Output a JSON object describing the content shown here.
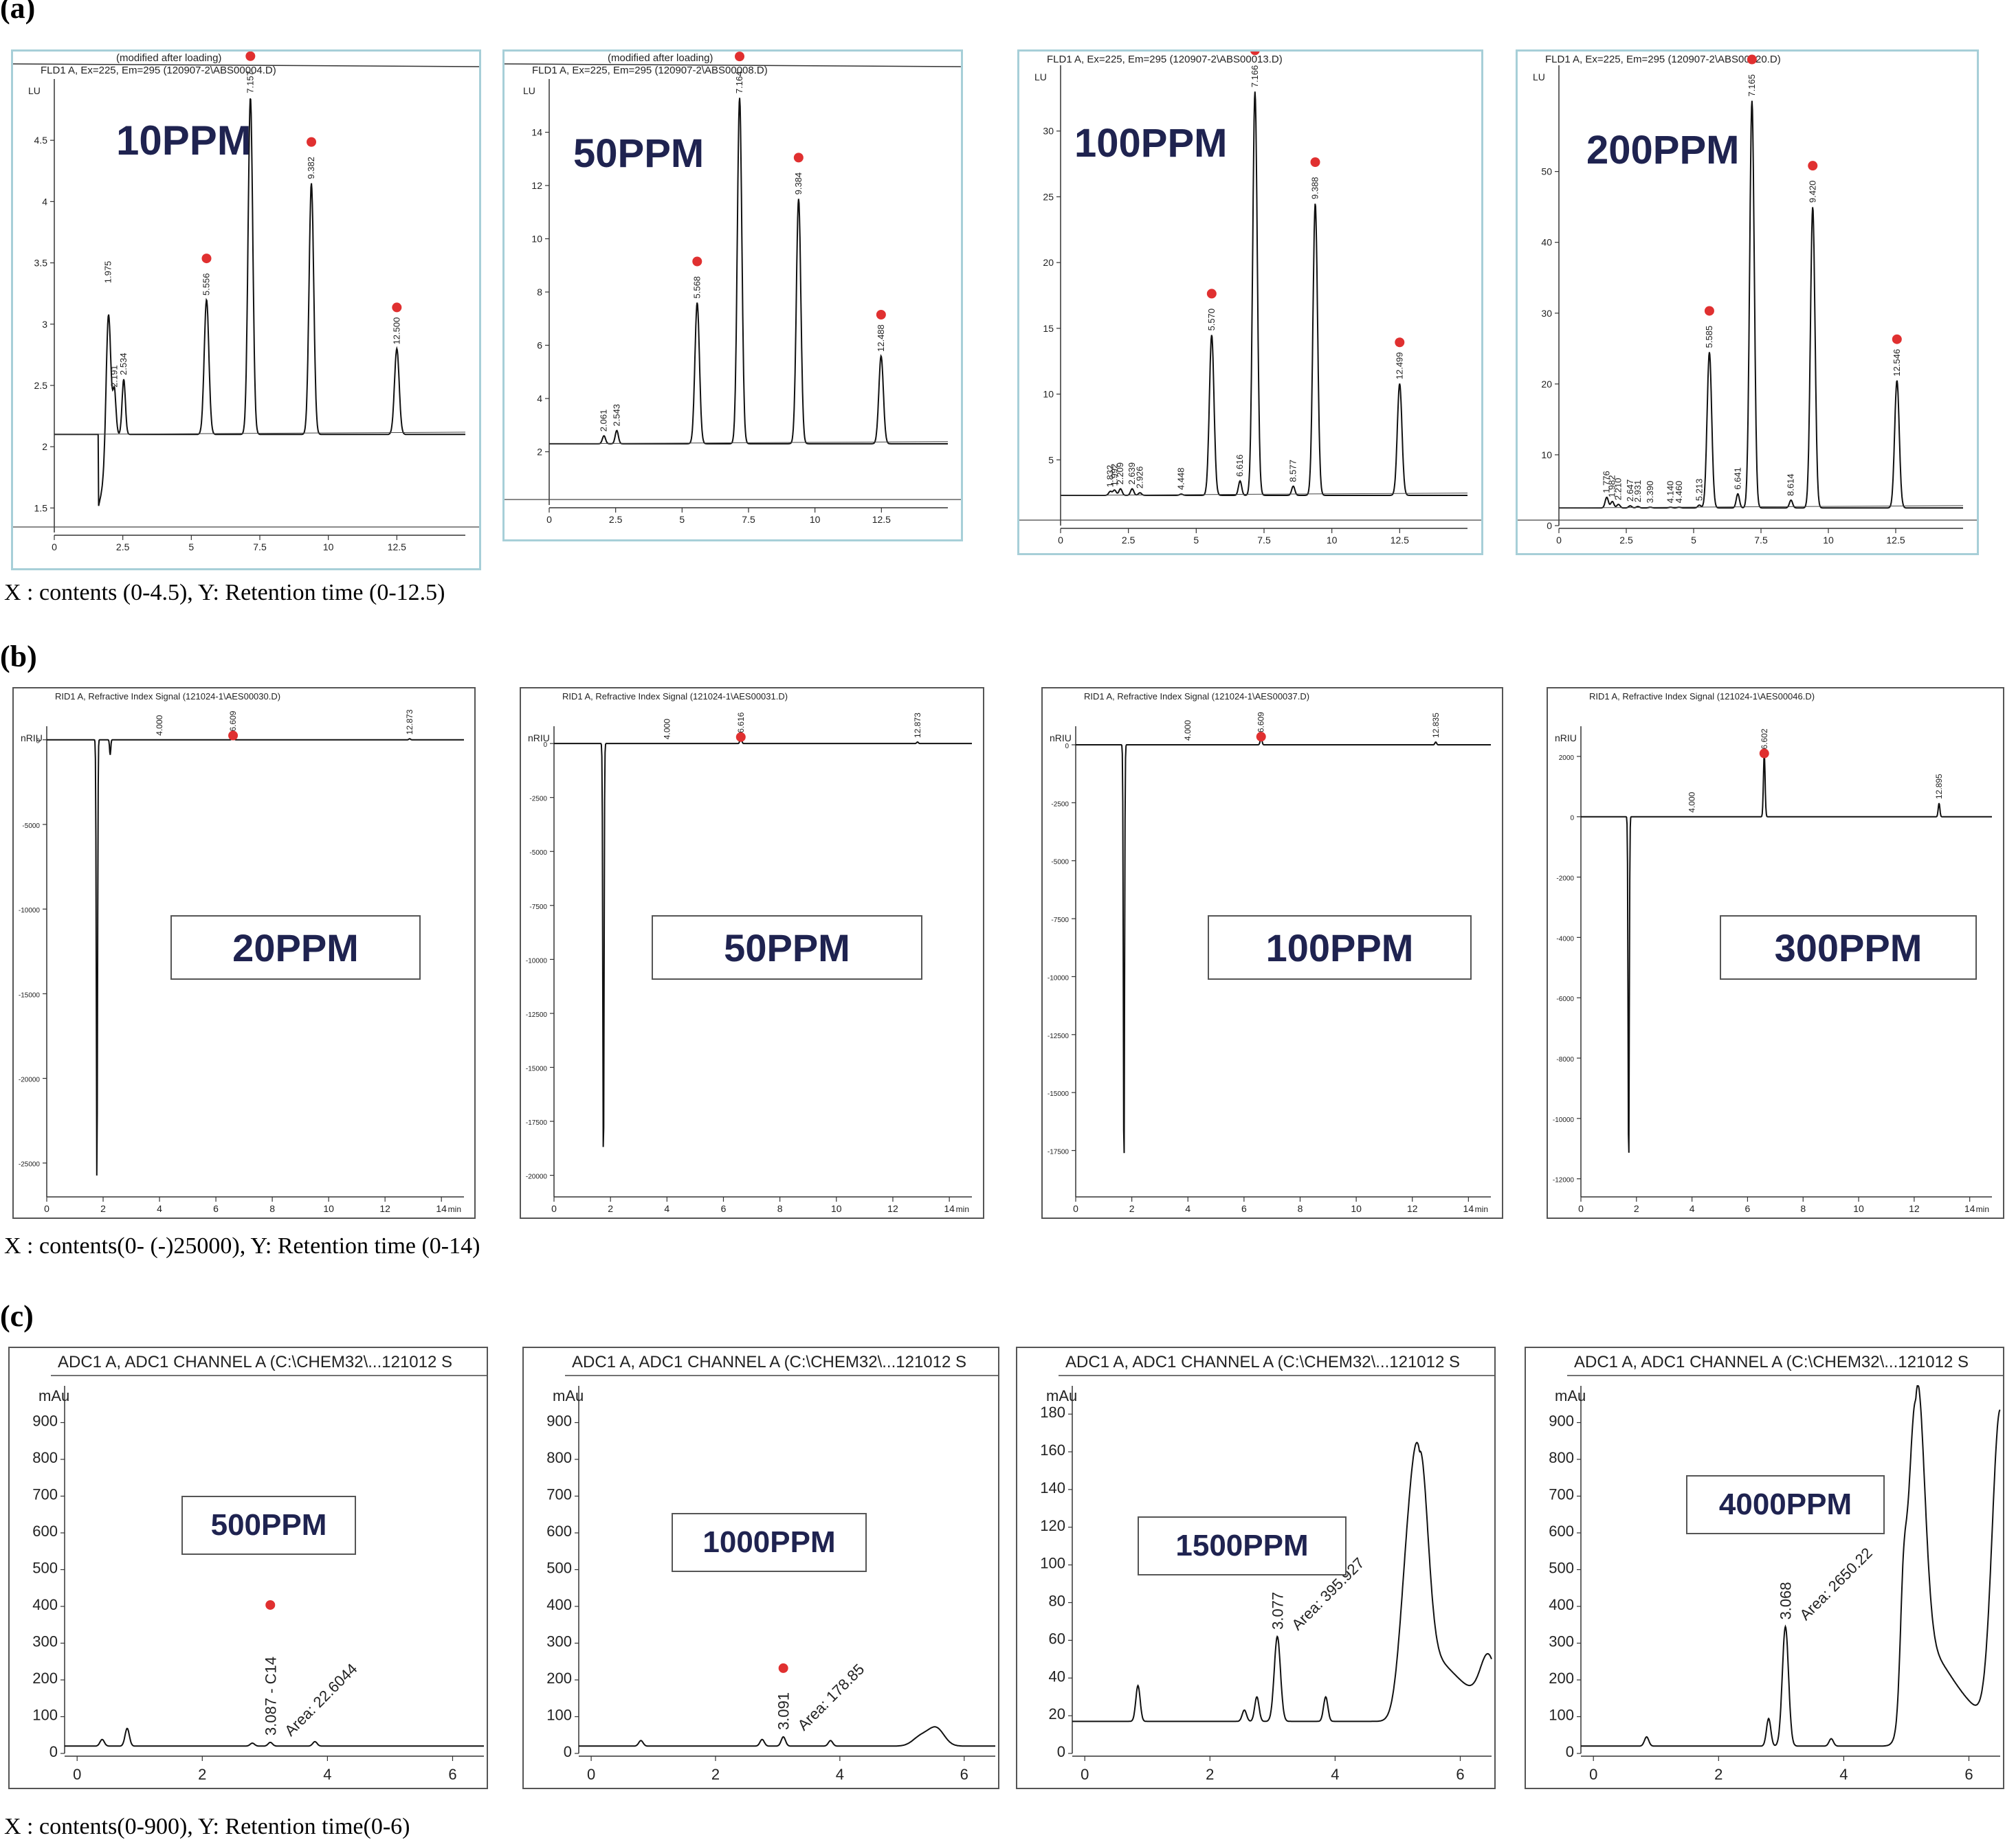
{
  "sections": [
    {
      "id": "a",
      "label": "(a)",
      "caption": "X : contents (0-4.5), Y: Retention time (0-12.5)",
      "charts": [
        {
          "concentration": "10PPM",
          "header_top": "(modified after loading)",
          "header": "FLD1 A, Ex=225, Em=295 (120907-2\\ABS00004.D)",
          "y_unit": "LU",
          "peaks": [
            "1.975",
            "2.191",
            "2.534",
            "5.556",
            "7.157",
            "9.382",
            "12.500"
          ]
        },
        {
          "concentration": "50PPM",
          "header_top": "(modified after loading)",
          "header": "FLD1 A, Ex=225, Em=295 (120907-2\\ABS00008.D)",
          "y_unit": "LU",
          "peaks": [
            "2.061",
            "2.543",
            "5.568",
            "7.164",
            "9.384",
            "12.488"
          ]
        },
        {
          "concentration": "100PPM",
          "header_top": "",
          "header": "FLD1 A, Ex=225, Em=295 (120907-2\\ABS00013.D)",
          "y_unit": "LU",
          "peaks": [
            "1.832",
            "1.992",
            "2.209",
            "2.639",
            "2.926",
            "4.448",
            "5.570",
            "6.616",
            "7.166",
            "8.577",
            "9.388",
            "12.499"
          ]
        },
        {
          "concentration": "200PPM",
          "header_top": "",
          "header": "FLD1 A, Ex=225, Em=295 (120907-2\\ABS00020.D)",
          "y_unit": "LU",
          "peaks": [
            "1.776",
            "1.982",
            "2.210",
            "2.647",
            "2.931",
            "3.390",
            "4.140",
            "4.460",
            "5.213",
            "5.585",
            "6.641",
            "7.165",
            "8.614",
            "9.420",
            "12.546"
          ]
        }
      ]
    },
    {
      "id": "b",
      "label": "(b)",
      "caption": "X : contents(0- (-)25000), Y: Retention time (0-14)",
      "charts": [
        {
          "concentration": "20PPM",
          "header": "RID1 A, Refractive Index Signal (121024-1\\AES00030.D)",
          "y_unit": "nRIU",
          "x_unit": "min",
          "peaks": [
            "4.000",
            "6.609",
            "12.873"
          ]
        },
        {
          "concentration": "50PPM",
          "header": "RID1 A, Refractive Index Signal (121024-1\\AES00031.D)",
          "y_unit": "nRIU",
          "x_unit": "min",
          "peaks": [
            "4.000",
            "6.616",
            "12.873"
          ]
        },
        {
          "concentration": "100PPM",
          "header": "RID1 A, Refractive Index Signal (121024-1\\AES00037.D)",
          "y_unit": "nRIU",
          "x_unit": "min",
          "peaks": [
            "4.000",
            "6.609",
            "12.835"
          ]
        },
        {
          "concentration": "300PPM",
          "header": "RID1 A, Refractive Index Signal (121024-1\\AES00046.D)",
          "y_unit": "nRIU",
          "x_unit": "min",
          "peaks": [
            "4.000",
            "6.602",
            "12.895"
          ]
        }
      ]
    },
    {
      "id": "c",
      "label": "(c)",
      "caption": "X : contents(0-900), Y: Retention time(0-6)",
      "charts": [
        {
          "concentration": "500PPM",
          "header": "ADC1 A, ADC1 CHANNEL A (C:\\CHEM32\\...121012 S",
          "y_unit": "mAu",
          "peak_label": "3.087 - C14",
          "area_label": "Area: 22.6044"
        },
        {
          "concentration": "1000PPM",
          "header": "ADC1 A, ADC1 CHANNEL A (C:\\CHEM32\\...121012 S",
          "y_unit": "mAu",
          "peak_label": "3.091",
          "area_label": "Area: 178.85"
        },
        {
          "concentration": "1500PPM",
          "header": "ADC1 A, ADC1 CHANNEL A (C:\\CHEM32\\...121012 S",
          "y_unit": "mAu",
          "peak_label": "3.077",
          "area_label": "Area: 395.927"
        },
        {
          "concentration": "4000PPM",
          "header": "ADC1 A, ADC1 CHANNEL A (C:\\CHEM32\\...121012 S",
          "y_unit": "mAu",
          "peak_label": "3.068",
          "area_label": "Area: 2650.22"
        }
      ]
    }
  ],
  "chart_data": [
    {
      "type": "line",
      "section": "a",
      "title": "10PPM",
      "ylabel": "LU",
      "xlim": [
        0,
        15
      ],
      "ylim": [
        1.3,
        5
      ],
      "x_ticks": [
        0,
        2.5,
        5,
        7.5,
        10,
        12.5
      ],
      "y_ticks": [
        1.5,
        2,
        2.5,
        3,
        3.5,
        4,
        4.5
      ],
      "baseline": 2.1,
      "peaks": [
        {
          "x": 1.975,
          "y": 3.3
        },
        {
          "x": 2.191,
          "y": 2.45
        },
        {
          "x": 2.534,
          "y": 2.55
        },
        {
          "x": 5.556,
          "y": 3.2
        },
        {
          "x": 7.157,
          "y": 4.85
        },
        {
          "x": 9.382,
          "y": 4.15
        },
        {
          "x": 12.5,
          "y": 2.8
        }
      ],
      "marked_peaks": [
        5.556,
        7.157,
        9.382,
        12.5
      ]
    },
    {
      "type": "line",
      "section": "a",
      "title": "50PPM",
      "ylabel": "LU",
      "xlim": [
        0,
        15
      ],
      "ylim": [
        0,
        16
      ],
      "x_ticks": [
        0,
        2.5,
        5,
        7.5,
        10,
        12.5
      ],
      "y_ticks": [
        2,
        4,
        6,
        8,
        10,
        12,
        14
      ],
      "baseline": 2.3,
      "peaks": [
        {
          "x": 2.061,
          "y": 2.6
        },
        {
          "x": 2.543,
          "y": 2.8
        },
        {
          "x": 5.568,
          "y": 7.6
        },
        {
          "x": 7.164,
          "y": 15.3
        },
        {
          "x": 9.384,
          "y": 11.5
        },
        {
          "x": 12.488,
          "y": 5.6
        }
      ],
      "marked_peaks": [
        5.568,
        7.164,
        9.384,
        12.488
      ]
    },
    {
      "type": "line",
      "section": "a",
      "title": "100PPM",
      "ylabel": "LU",
      "xlim": [
        0,
        15
      ],
      "ylim": [
        0,
        35
      ],
      "x_ticks": [
        0,
        2.5,
        5,
        7.5,
        10,
        12.5
      ],
      "y_ticks": [
        5,
        10,
        15,
        20,
        25,
        30
      ],
      "baseline": 2.3,
      "peaks": [
        {
          "x": 1.832,
          "y": 2.6
        },
        {
          "x": 1.992,
          "y": 2.7
        },
        {
          "x": 2.209,
          "y": 2.8
        },
        {
          "x": 2.639,
          "y": 2.8
        },
        {
          "x": 2.926,
          "y": 2.5
        },
        {
          "x": 4.448,
          "y": 2.4
        },
        {
          "x": 5.57,
          "y": 14.5
        },
        {
          "x": 6.616,
          "y": 3.4
        },
        {
          "x": 7.166,
          "y": 33
        },
        {
          "x": 8.577,
          "y": 3.0
        },
        {
          "x": 9.388,
          "y": 24.5
        },
        {
          "x": 12.499,
          "y": 10.8
        }
      ],
      "marked_peaks": [
        5.57,
        7.166,
        9.388,
        12.499
      ]
    },
    {
      "type": "line",
      "section": "a",
      "title": "200PPM",
      "ylabel": "LU",
      "xlim": [
        0,
        15
      ],
      "ylim": [
        0,
        65
      ],
      "x_ticks": [
        0,
        2.5,
        5,
        7.5,
        10,
        12.5
      ],
      "y_ticks": [
        0,
        10,
        20,
        30,
        40,
        50
      ],
      "baseline": 2.5,
      "peaks": [
        {
          "x": 1.776,
          "y": 4
        },
        {
          "x": 1.982,
          "y": 3.4
        },
        {
          "x": 2.21,
          "y": 3.0
        },
        {
          "x": 2.647,
          "y": 2.8
        },
        {
          "x": 2.931,
          "y": 2.7
        },
        {
          "x": 3.39,
          "y": 2.6
        },
        {
          "x": 4.14,
          "y": 2.6
        },
        {
          "x": 4.46,
          "y": 2.6
        },
        {
          "x": 5.213,
          "y": 2.9
        },
        {
          "x": 5.585,
          "y": 24.5
        },
        {
          "x": 6.641,
          "y": 4.5
        },
        {
          "x": 7.165,
          "y": 60
        },
        {
          "x": 8.614,
          "y": 3.6
        },
        {
          "x": 9.42,
          "y": 45
        },
        {
          "x": 12.546,
          "y": 20.5
        }
      ],
      "marked_peaks": [
        5.585,
        7.165,
        9.42,
        12.546
      ]
    },
    {
      "type": "line",
      "section": "b",
      "title": "20PPM",
      "ylabel": "nRIU",
      "xlabel": "min",
      "xlim": [
        0,
        14.8
      ],
      "ylim": [
        -27000,
        800
      ],
      "x_ticks": [
        0,
        2,
        4,
        6,
        8,
        10,
        12,
        14
      ],
      "y_ticks": [
        0,
        -5000,
        -10000,
        -15000,
        -20000,
        -25000
      ],
      "baseline": 0,
      "dips": [
        {
          "x": 1.78,
          "y": -26200
        },
        {
          "x": 2.25,
          "y": -900
        }
      ],
      "peaks": [
        {
          "x": 6.609,
          "y": 250
        },
        {
          "x": 12.873,
          "y": 60
        }
      ],
      "marked_peaks": [
        6.609
      ]
    },
    {
      "type": "line",
      "section": "b",
      "title": "50PPM",
      "ylabel": "nRIU",
      "xlabel": "min",
      "xlim": [
        0,
        14.8
      ],
      "ylim": [
        -21000,
        800
      ],
      "x_ticks": [
        0,
        2,
        4,
        6,
        8,
        10,
        12,
        14
      ],
      "y_ticks": [
        0,
        -2500,
        -5000,
        -7500,
        -10000,
        -12500,
        -15000,
        -17500,
        -20000
      ],
      "baseline": 0,
      "dips": [
        {
          "x": 1.75,
          "y": -19700
        }
      ],
      "peaks": [
        {
          "x": 6.616,
          "y": 300
        },
        {
          "x": 12.873,
          "y": 70
        }
      ],
      "marked_peaks": [
        6.616
      ]
    },
    {
      "type": "line",
      "section": "b",
      "title": "100PPM",
      "ylabel": "nRIU",
      "xlabel": "min",
      "xlim": [
        0,
        14.8
      ],
      "ylim": [
        -19500,
        800
      ],
      "x_ticks": [
        0,
        2,
        4,
        6,
        8,
        10,
        12,
        14
      ],
      "y_ticks": [
        0,
        -2500,
        -5000,
        -7500,
        -10000,
        -12500,
        -15000,
        -17500
      ],
      "baseline": 0,
      "dips": [
        {
          "x": 1.72,
          "y": -18500
        }
      ],
      "peaks": [
        {
          "x": 6.609,
          "y": 350
        },
        {
          "x": 12.835,
          "y": 120
        }
      ],
      "marked_peaks": [
        6.609
      ]
    },
    {
      "type": "line",
      "section": "b",
      "title": "300PPM",
      "ylabel": "nRIU",
      "xlabel": "min",
      "xlim": [
        0,
        14.8
      ],
      "ylim": [
        -12600,
        3000
      ],
      "x_ticks": [
        0,
        2,
        4,
        6,
        8,
        10,
        12,
        14
      ],
      "y_ticks": [
        2000,
        0,
        -2000,
        -4000,
        -6000,
        -8000,
        -10000,
        -12000
      ],
      "baseline": 0,
      "dips": [
        {
          "x": 1.72,
          "y": -11700
        }
      ],
      "peaks": [
        {
          "x": 6.602,
          "y": 2100
        },
        {
          "x": 12.895,
          "y": 450
        }
      ],
      "marked_peaks": [
        6.602
      ]
    },
    {
      "type": "line",
      "section": "c",
      "title": "500PPM",
      "ylabel": "mAu",
      "xlim": [
        -0.2,
        6.5
      ],
      "ylim": [
        0,
        1000
      ],
      "x_ticks": [
        0,
        2,
        4,
        6
      ],
      "y_ticks": [
        0,
        100,
        200,
        300,
        400,
        500,
        600,
        700,
        800,
        900
      ],
      "baseline": 20,
      "peaks": [
        {
          "x": 0.4,
          "y": 38
        },
        {
          "x": 0.8,
          "y": 68
        },
        {
          "x": 2.8,
          "y": 28
        },
        {
          "x": 3.087,
          "y": 30
        },
        {
          "x": 3.8,
          "y": 32
        }
      ],
      "marked_peaks": [
        3.087
      ]
    },
    {
      "type": "line",
      "section": "c",
      "title": "1000PPM",
      "ylabel": "mAu",
      "xlim": [
        -0.2,
        6.5
      ],
      "ylim": [
        0,
        1000
      ],
      "x_ticks": [
        0,
        2,
        4,
        6
      ],
      "y_ticks": [
        0,
        100,
        200,
        300,
        400,
        500,
        600,
        700,
        800,
        900
      ],
      "baseline": 20,
      "peaks": [
        {
          "x": 0.8,
          "y": 35
        },
        {
          "x": 2.75,
          "y": 38
        },
        {
          "x": 3.091,
          "y": 45
        },
        {
          "x": 3.85,
          "y": 35
        },
        {
          "x": 5.3,
          "y": 45
        },
        {
          "x": 5.55,
          "y": 68
        }
      ],
      "marked_peaks": [
        3.091
      ]
    },
    {
      "type": "line",
      "section": "c",
      "title": "1500PPM",
      "ylabel": "mAu",
      "xlim": [
        -0.2,
        6.5
      ],
      "ylim": [
        0,
        195
      ],
      "x_ticks": [
        0,
        2,
        4,
        6
      ],
      "y_ticks": [
        0,
        20,
        40,
        60,
        80,
        100,
        120,
        140,
        160,
        180
      ],
      "baseline": 17,
      "peaks": [
        {
          "x": 0.85,
          "y": 36
        },
        {
          "x": 2.55,
          "y": 23
        },
        {
          "x": 2.75,
          "y": 30
        },
        {
          "x": 3.077,
          "y": 62
        },
        {
          "x": 3.85,
          "y": 30
        },
        {
          "x": 5.15,
          "y": 85
        },
        {
          "x": 5.35,
          "y": 140
        },
        {
          "x": 6.45,
          "y": 42
        }
      ],
      "marked_peaks": [
        3.077
      ]
    },
    {
      "type": "line",
      "section": "c",
      "title": "4000PPM",
      "ylabel": "mAu",
      "xlim": [
        -0.2,
        6.5
      ],
      "ylim": [
        0,
        1000
      ],
      "x_ticks": [
        0,
        2,
        4,
        6
      ],
      "y_ticks": [
        0,
        100,
        200,
        300,
        400,
        500,
        600,
        700,
        800,
        900
      ],
      "baseline": 20,
      "peaks": [
        {
          "x": 0.85,
          "y": 45
        },
        {
          "x": 2.8,
          "y": 95
        },
        {
          "x": 3.068,
          "y": 345
        },
        {
          "x": 3.8,
          "y": 40
        },
        {
          "x": 4.95,
          "y": 260
        },
        {
          "x": 5.15,
          "y": 960
        },
        {
          "x": 6.5,
          "y": 880
        }
      ],
      "marked_peaks": [
        3.068
      ]
    }
  ]
}
